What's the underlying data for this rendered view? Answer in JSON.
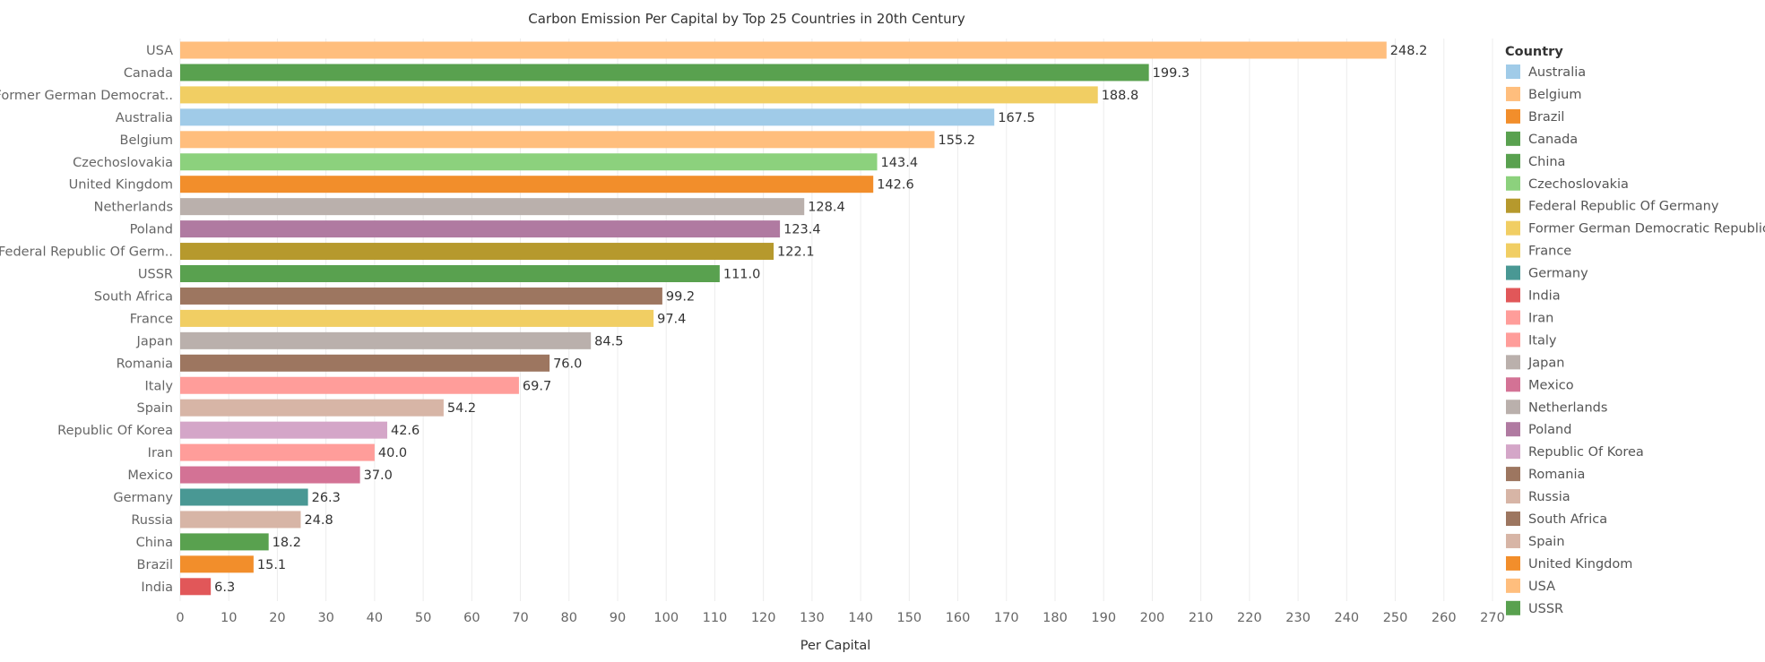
{
  "chart_data": {
    "type": "bar",
    "orientation": "horizontal",
    "title": "Carbon Emission Per Capital by Top 25 Countries in 20th Century",
    "xlabel": "Per Capital",
    "ylabel": "",
    "xlim": [
      0,
      270
    ],
    "grid": "vertical",
    "legend": {
      "title": "Country",
      "placement": "right"
    },
    "x_ticks": [
      "0",
      "10",
      "20",
      "30",
      "40",
      "50",
      "60",
      "70",
      "80",
      "90",
      "100",
      "110",
      "120",
      "130",
      "140",
      "150",
      "160",
      "170",
      "180",
      "190",
      "200",
      "210",
      "220",
      "230",
      "240",
      "250",
      "260",
      "270"
    ],
    "categories": [
      "USA",
      "Canada",
      "Former German Democrat..",
      "Australia",
      "Belgium",
      "Czechoslovakia",
      "United Kingdom",
      "Netherlands",
      "Poland",
      "Federal Republic Of Germ..",
      "USSR",
      "South Africa",
      "France",
      "Japan",
      "Romania",
      "Italy",
      "Spain",
      "Republic Of Korea",
      "Iran",
      "Mexico",
      "Germany",
      "Russia",
      "China",
      "Brazil",
      "India"
    ],
    "values": [
      248.2,
      199.3,
      188.8,
      167.5,
      155.2,
      143.4,
      142.6,
      128.4,
      123.4,
      122.1,
      111.0,
      99.2,
      97.4,
      84.5,
      76.0,
      69.7,
      54.2,
      42.6,
      40.0,
      37.0,
      26.3,
      24.8,
      18.2,
      15.1,
      6.3
    ],
    "value_labels": [
      "248.2",
      "199.3",
      "188.8",
      "167.5",
      "155.2",
      "143.4",
      "142.6",
      "128.4",
      "123.4",
      "122.1",
      "111.0",
      "99.2",
      "97.4",
      "84.5",
      "76.0",
      "69.7",
      "54.2",
      "42.6",
      "40.0",
      "37.0",
      "26.3",
      "24.8",
      "18.2",
      "15.1",
      "6.3"
    ],
    "bar_colors": [
      "#ffbe7d",
      "#59a14f",
      "#f1ce63",
      "#a0cbe8",
      "#ffbe7d",
      "#8cd17d",
      "#f28e2b",
      "#bab0ac",
      "#b07aa1",
      "#b6992d",
      "#59a14f",
      "#9d7660",
      "#f1ce63",
      "#bab0ac",
      "#9d7660",
      "#ff9d9a",
      "#d7b5a6",
      "#d4a6c8",
      "#ff9d9a",
      "#d37295",
      "#499894",
      "#d7b5a6",
      "#59a14f",
      "#f28e2b",
      "#e15759"
    ],
    "legend_items": [
      {
        "label": "Australia",
        "color": "#a0cbe8"
      },
      {
        "label": "Belgium",
        "color": "#ffbe7d"
      },
      {
        "label": "Brazil",
        "color": "#f28e2b"
      },
      {
        "label": "Canada",
        "color": "#59a14f"
      },
      {
        "label": "China",
        "color": "#59a14f"
      },
      {
        "label": "Czechoslovakia",
        "color": "#8cd17d"
      },
      {
        "label": "Federal Republic Of Germany",
        "color": "#b6992d"
      },
      {
        "label": "Former German Democratic Republic",
        "color": "#f1ce63"
      },
      {
        "label": "France",
        "color": "#f1ce63"
      },
      {
        "label": "Germany",
        "color": "#499894"
      },
      {
        "label": "India",
        "color": "#e15759"
      },
      {
        "label": "Iran",
        "color": "#ff9d9a"
      },
      {
        "label": "Italy",
        "color": "#ff9d9a"
      },
      {
        "label": "Japan",
        "color": "#bab0ac"
      },
      {
        "label": "Mexico",
        "color": "#d37295"
      },
      {
        "label": "Netherlands",
        "color": "#bab0ac"
      },
      {
        "label": "Poland",
        "color": "#b07aa1"
      },
      {
        "label": "Republic Of Korea",
        "color": "#d4a6c8"
      },
      {
        "label": "Romania",
        "color": "#9d7660"
      },
      {
        "label": "Russia",
        "color": "#d7b5a6"
      },
      {
        "label": "South Africa",
        "color": "#9d7660"
      },
      {
        "label": "Spain",
        "color": "#d7b5a6"
      },
      {
        "label": "United Kingdom",
        "color": "#f28e2b"
      },
      {
        "label": "USA",
        "color": "#ffbe7d"
      },
      {
        "label": "USSR",
        "color": "#59a14f"
      }
    ]
  }
}
